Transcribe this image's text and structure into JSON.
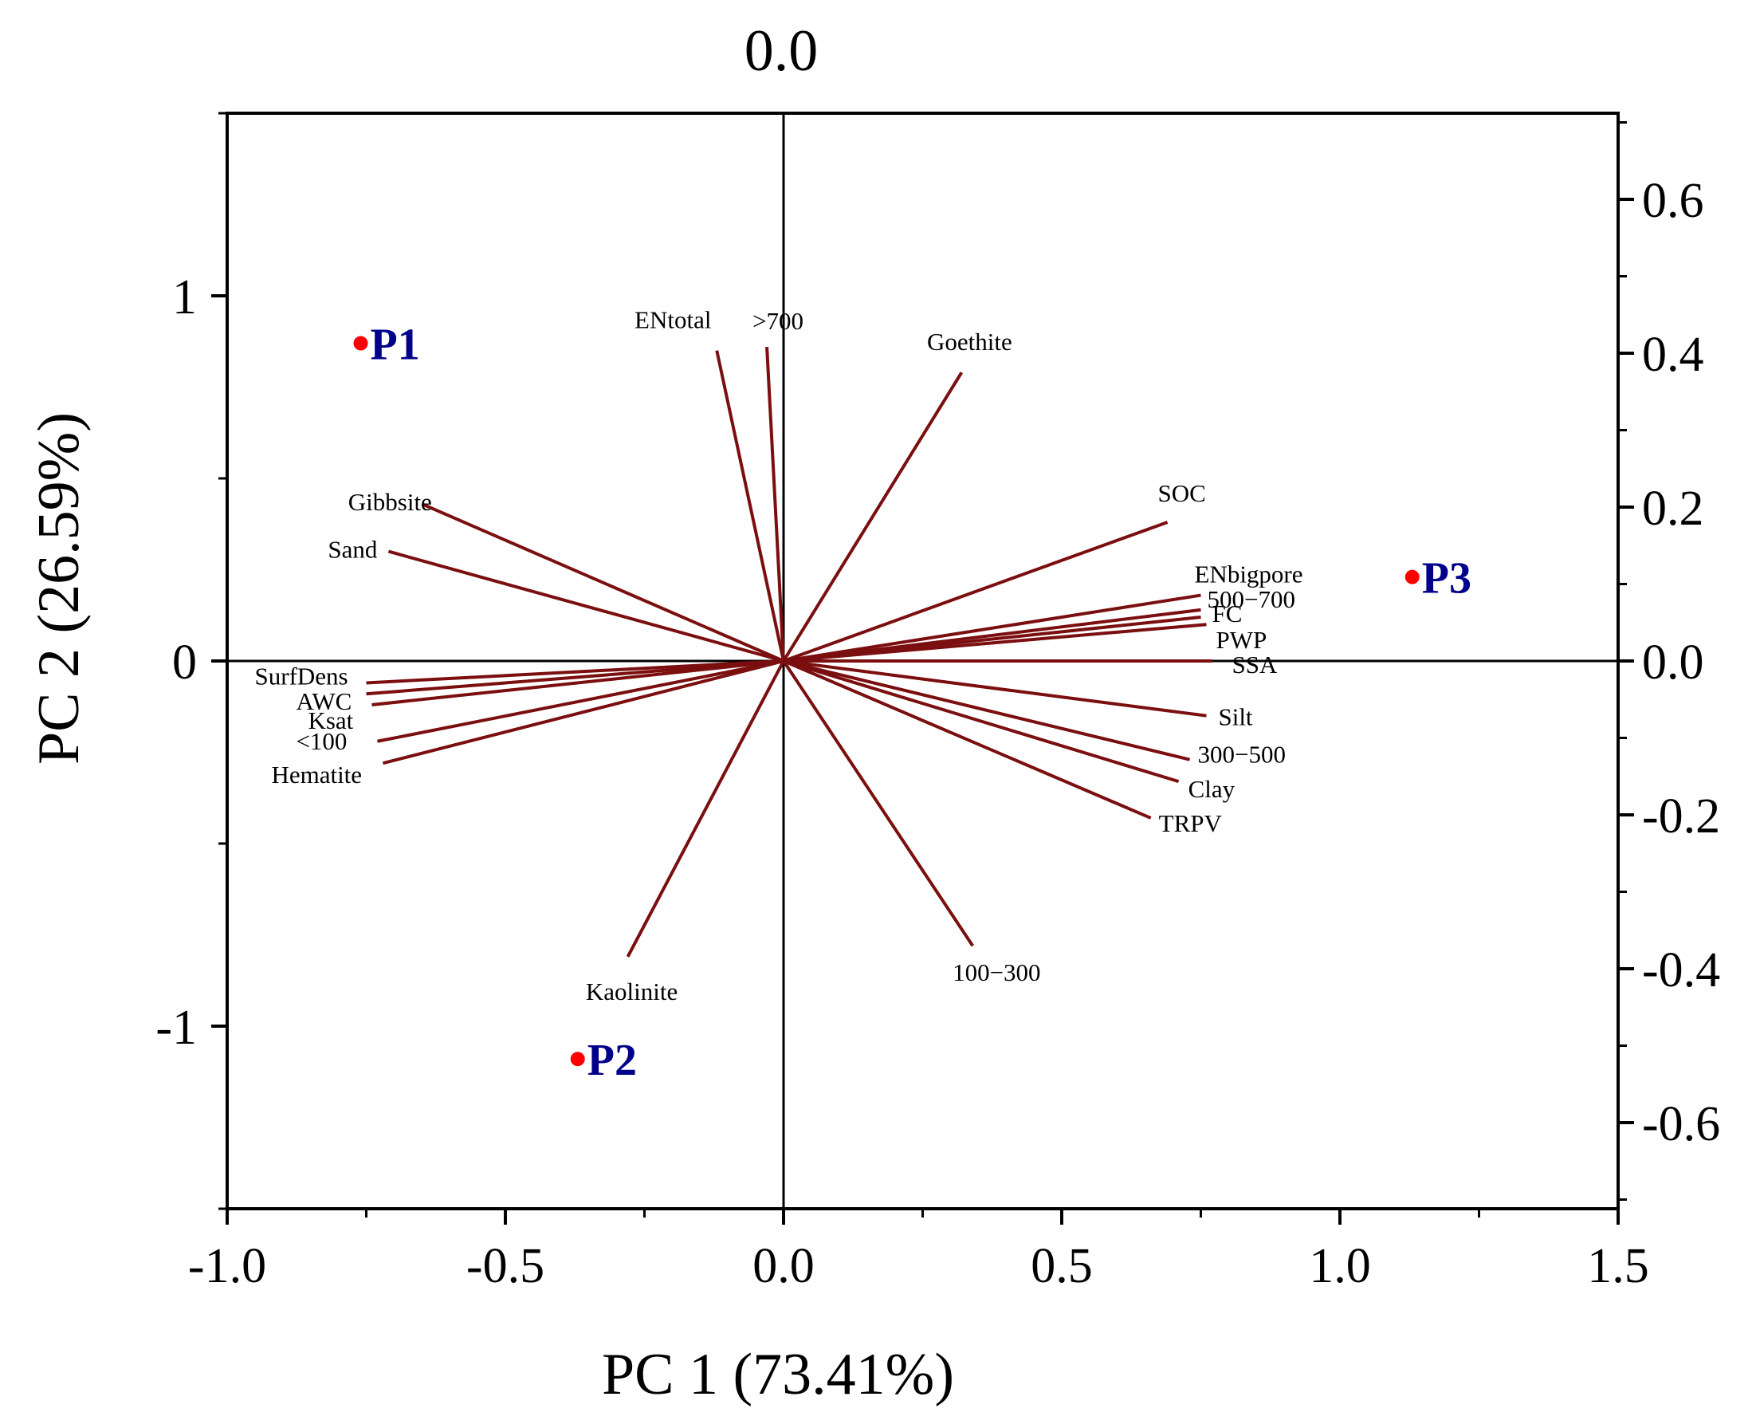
{
  "chart_data": {
    "type": "biplot",
    "title": "",
    "xlabel": "PC 1 (73.41%)",
    "ylabel": "PC 2 (26.59%)",
    "top_axis_label": "0.0",
    "xlim": [
      -1.0,
      1.5
    ],
    "ylim": [
      -1.5,
      1.5
    ],
    "y2lim": [
      -0.7,
      0.7
    ],
    "x_ticks": [
      {
        "value": -1.0,
        "label": "-1.0"
      },
      {
        "value": -0.5,
        "label": "-0.5"
      },
      {
        "value": 0.0,
        "label": "0.0"
      },
      {
        "value": 0.5,
        "label": "0.5"
      },
      {
        "value": 1.0,
        "label": "1.0"
      },
      {
        "value": 1.5,
        "label": "1.5"
      }
    ],
    "y_ticks": [
      {
        "value": 1,
        "label": "1"
      },
      {
        "value": 0,
        "label": "0"
      },
      {
        "value": -1,
        "label": "-1"
      }
    ],
    "y2_ticks": [
      {
        "value": 0.6,
        "label": "0.6"
      },
      {
        "value": 0.4,
        "label": "0.4"
      },
      {
        "value": 0.2,
        "label": "0.2"
      },
      {
        "value": 0.0,
        "label": "0.0"
      },
      {
        "value": -0.2,
        "label": "-0.2"
      },
      {
        "value": -0.4,
        "label": "-0.4"
      },
      {
        "value": -0.6,
        "label": "-0.6"
      }
    ],
    "observations": [
      {
        "name": "P1",
        "x": -0.76,
        "y": 0.87
      },
      {
        "name": "P2",
        "x": -0.37,
        "y": -1.09
      },
      {
        "name": "P3",
        "x": 1.13,
        "y": 0.23
      }
    ],
    "loadings": [
      {
        "name": "ENtotal",
        "x": -0.12,
        "y": 0.85
      },
      {
        "name": ">700",
        "x": -0.03,
        "y": 0.86
      },
      {
        "name": "Goethite",
        "x": 0.32,
        "y": 0.79
      },
      {
        "name": "Gibbsite",
        "x": -0.65,
        "y": 0.43
      },
      {
        "name": "Sand",
        "x": -0.71,
        "y": 0.3
      },
      {
        "name": "SOC",
        "x": 0.69,
        "y": 0.38
      },
      {
        "name": "ENbigpore",
        "x": 0.75,
        "y": 0.18
      },
      {
        "name": "500−700",
        "x": 0.75,
        "y": 0.14
      },
      {
        "name": "FC",
        "x": 0.75,
        "y": 0.12
      },
      {
        "name": "PWP",
        "x": 0.76,
        "y": 0.1
      },
      {
        "name": "SSA",
        "x": 0.77,
        "y": 0.0
      },
      {
        "name": "SurfDens",
        "x": -0.75,
        "y": -0.06
      },
      {
        "name": "AWC",
        "x": -0.75,
        "y": -0.09
      },
      {
        "name": "Ksat",
        "x": -0.74,
        "y": -0.12
      },
      {
        "name": "<100",
        "x": -0.73,
        "y": -0.22
      },
      {
        "name": "Hematite",
        "x": -0.72,
        "y": -0.28
      },
      {
        "name": "Silt",
        "x": 0.76,
        "y": -0.15
      },
      {
        "name": "300−500",
        "x": 0.73,
        "y": -0.27
      },
      {
        "name": "Clay",
        "x": 0.71,
        "y": -0.33
      },
      {
        "name": "TRPV",
        "x": 0.66,
        "y": -0.43
      },
      {
        "name": "100−300",
        "x": 0.34,
        "y": -0.78
      },
      {
        "name": "Kaolinite",
        "x": -0.28,
        "y": -0.81
      }
    ]
  },
  "colors": {
    "loading_line": "#7b0e0e",
    "observation_point": "#ff0000",
    "observation_label": "#00008b",
    "axis": "#000000"
  }
}
